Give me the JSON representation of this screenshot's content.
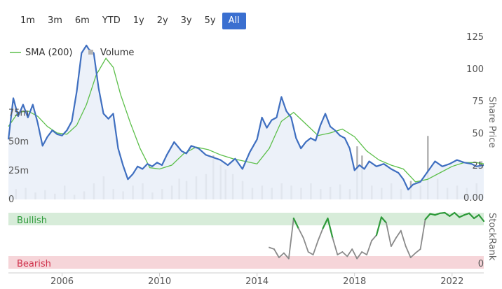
{
  "range_selector": {
    "buttons": [
      "1m",
      "3m",
      "6m",
      "YTD",
      "1y",
      "2y",
      "3y",
      "5y",
      "All"
    ],
    "active": "All"
  },
  "colors": {
    "price": "#3f6fc0",
    "sma": "#5cbf4a",
    "volume": "#b3b3b3",
    "area": "#e9eef8",
    "bullish_band": "#d7ecd9",
    "bearish_band": "#f6d5d9",
    "bullish_text": "#2e9a3a",
    "bearish_text": "#d0304a",
    "rank_green": "#2e9a3a",
    "rank_grey": "#8a8a8a"
  },
  "chart_data": [
    {
      "type": "line",
      "title": "",
      "legend": [
        {
          "name": "SMA (200)",
          "marker": "line"
        },
        {
          "name": "Volume",
          "marker": "square"
        }
      ],
      "legend_placement": "top-left",
      "x_ticks": [
        "2006",
        "2010",
        "2014",
        "2018",
        "2022"
      ],
      "x_range": [
        2003.8,
        2023.3
      ],
      "right_axis": {
        "label": "Share Price",
        "ticks": [
          "125",
          "100",
          "75",
          "50",
          "25",
          "0.00"
        ],
        "range": [
          0,
          125
        ]
      },
      "left_axis": {
        "label": "",
        "ticks": [
          "75m",
          "50m",
          "25m",
          "0"
        ],
        "range": [
          0,
          100
        ]
      },
      "series": [
        {
          "name": "Share Price",
          "x": [
            2003.8,
            2004.0,
            2004.2,
            2004.4,
            2004.6,
            2004.8,
            2005.0,
            2005.2,
            2005.4,
            2005.6,
            2005.8,
            2006.0,
            2006.2,
            2006.4,
            2006.6,
            2006.8,
            2007.0,
            2007.1,
            2007.3,
            2007.5,
            2007.7,
            2007.9,
            2008.1,
            2008.3,
            2008.5,
            2008.7,
            2008.9,
            2009.1,
            2009.3,
            2009.5,
            2009.7,
            2009.9,
            2010.1,
            2010.3,
            2010.6,
            2010.9,
            2011.1,
            2011.3,
            2011.6,
            2011.9,
            2012.2,
            2012.5,
            2012.8,
            2013.1,
            2013.4,
            2013.7,
            2014.0,
            2014.2,
            2014.4,
            2014.6,
            2014.8,
            2015.0,
            2015.2,
            2015.4,
            2015.6,
            2015.8,
            2016.0,
            2016.2,
            2016.4,
            2016.6,
            2016.8,
            2017.0,
            2017.2,
            2017.4,
            2017.6,
            2017.8,
            2018.0,
            2018.2,
            2018.4,
            2018.6,
            2018.9,
            2019.2,
            2019.5,
            2019.8,
            2020.0,
            2020.2,
            2020.4,
            2020.7,
            2021.0,
            2021.3,
            2021.6,
            2021.9,
            2022.2,
            2022.5,
            2022.8,
            2023.0,
            2023.3
          ],
          "values": [
            45,
            77,
            63,
            72,
            62,
            72,
            58,
            40,
            47,
            52,
            49,
            48,
            52,
            59,
            82,
            112,
            118,
            115,
            112,
            85,
            65,
            61,
            65,
            38,
            25,
            14,
            18,
            24,
            22,
            26,
            24,
            27,
            25,
            33,
            43,
            36,
            34,
            40,
            38,
            33,
            31,
            29,
            25,
            30,
            22,
            35,
            45,
            62,
            54,
            60,
            62,
            78,
            67,
            62,
            46,
            38,
            43,
            46,
            44,
            56,
            65,
            55,
            52,
            48,
            46,
            38,
            21,
            25,
            22,
            28,
            24,
            26,
            22,
            19,
            14,
            6,
            10,
            12,
            20,
            28,
            24,
            26,
            29,
            27,
            26,
            24,
            25
          ]
        },
        {
          "name": "SMA (200)",
          "x": [
            2003.8,
            2004.2,
            2004.6,
            2005.0,
            2005.4,
            2005.8,
            2006.2,
            2006.6,
            2007.0,
            2007.4,
            2007.8,
            2008.1,
            2008.4,
            2008.8,
            2009.2,
            2009.6,
            2010.0,
            2010.5,
            2011.0,
            2011.5,
            2012.0,
            2012.5,
            2013.0,
            2013.5,
            2014.0,
            2014.5,
            2015.0,
            2015.5,
            2016.0,
            2016.5,
            2017.0,
            2017.5,
            2018.0,
            2018.5,
            2019.0,
            2019.5,
            2020.0,
            2020.5,
            2021.0,
            2021.5,
            2022.0,
            2022.5,
            2023.0,
            2023.3
          ],
          "values": [
            55,
            66,
            67,
            63,
            55,
            50,
            49,
            56,
            72,
            95,
            108,
            101,
            80,
            58,
            38,
            23,
            22,
            25,
            34,
            39,
            37,
            33,
            30,
            28,
            26,
            38,
            59,
            66,
            57,
            48,
            50,
            53,
            47,
            36,
            29,
            25,
            22,
            12,
            14,
            19,
            24,
            27,
            27,
            26
          ]
        }
      ],
      "volume": {
        "name": "Volume",
        "x": [
          2004.1,
          2004.5,
          2004.9,
          2005.3,
          2005.7,
          2006.1,
          2006.5,
          2006.9,
          2007.3,
          2007.7,
          2008.1,
          2008.5,
          2008.9,
          2009.3,
          2009.7,
          2010.1,
          2010.5,
          2010.8,
          2011.1,
          2011.5,
          2011.9,
          2012.2,
          2012.5,
          2012.7,
          2013.0,
          2013.4,
          2013.8,
          2014.2,
          2014.6,
          2015.0,
          2015.4,
          2015.8,
          2016.2,
          2016.6,
          2017.0,
          2017.4,
          2017.8,
          2018.1,
          2018.3,
          2018.7,
          2019.1,
          2019.5,
          2019.9,
          2020.3,
          2020.7,
          2021.0,
          2021.4,
          2021.8,
          2022.2,
          2022.6,
          2023.0
        ],
        "values": [
          9,
          10,
          6,
          8,
          5,
          12,
          4,
          7,
          14,
          20,
          9,
          7,
          12,
          14,
          6,
          9,
          12,
          18,
          16,
          20,
          22,
          38,
          30,
          26,
          22,
          16,
          10,
          12,
          10,
          14,
          12,
          10,
          14,
          9,
          11,
          13,
          9,
          46,
          38,
          12,
          10,
          14,
          9,
          16,
          12,
          55,
          18,
          10,
          12,
          10,
          14
        ]
      }
    },
    {
      "type": "line",
      "title": "StockRank",
      "bands": {
        "top": "Bullish",
        "bottom": "Bearish"
      },
      "y_ticks": [
        "0"
      ],
      "series": [
        {
          "name": "StockRank",
          "x": [
            2014.5,
            2014.7,
            2014.9,
            2015.1,
            2015.3,
            2015.5,
            2015.7,
            2015.9,
            2016.1,
            2016.3,
            2016.5,
            2016.7,
            2016.9,
            2017.1,
            2017.3,
            2017.5,
            2017.7,
            2017.9,
            2018.1,
            2018.3,
            2018.5,
            2018.7,
            2018.9,
            2019.1,
            2019.3,
            2019.5,
            2019.7,
            2019.9,
            2020.1,
            2020.3,
            2020.5,
            2020.7,
            2020.9,
            2021.1,
            2021.3,
            2021.5,
            2021.7,
            2021.9,
            2022.1,
            2022.3,
            2022.5,
            2022.7,
            2022.9,
            2023.1,
            2023.3
          ],
          "values": [
            38,
            35,
            20,
            28,
            18,
            90,
            72,
            55,
            30,
            25,
            50,
            72,
            90,
            55,
            25,
            30,
            22,
            35,
            18,
            30,
            25,
            50,
            60,
            92,
            82,
            40,
            55,
            68,
            40,
            20,
            28,
            35,
            88,
            98,
            96,
            99,
            100,
            94,
            100,
            92,
            96,
            99,
            90,
            96,
            85
          ]
        }
      ]
    }
  ]
}
